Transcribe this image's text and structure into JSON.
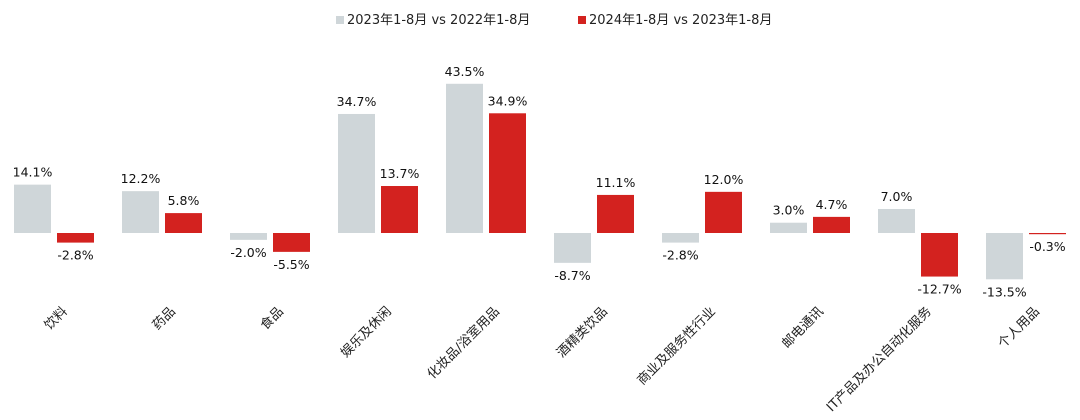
{
  "chart_data": {
    "type": "bar",
    "categories": [
      "饮料",
      "药品",
      "食品",
      "娱乐及休闲",
      "化妆品/浴室用品",
      "酒精类饮品",
      "商业及服务性行业",
      "邮电通讯",
      "IT产品及办公自动化服务",
      "个人用品"
    ],
    "series": [
      {
        "name": "2023年1-8月 vs 2022年1-8月",
        "color": "#cfd6d9",
        "values": [
          14.1,
          12.2,
          -2.0,
          34.7,
          43.5,
          -8.7,
          -2.8,
          3.0,
          7.0,
          -13.5
        ],
        "labels": [
          "14.1%",
          "12.2%",
          "-2.0%",
          "34.7%",
          "43.5%",
          "-8.7%",
          "-2.8%",
          "3.0%",
          "7.0%",
          "-13.5%"
        ]
      },
      {
        "name": "2024年1-8月 vs 2023年1-8月",
        "color": "#d3221f",
        "values": [
          -2.8,
          5.8,
          -5.5,
          13.7,
          34.9,
          11.1,
          12.0,
          4.7,
          -12.7,
          -0.3
        ],
        "labels": [
          "-2.8%",
          "5.8%",
          "-5.5%",
          "13.7%",
          "34.9%",
          "11.1%",
          "12.0%",
          "4.7%",
          "-12.7%",
          "-0.3%"
        ]
      }
    ],
    "legend_position": "top-center",
    "grid": false
  }
}
